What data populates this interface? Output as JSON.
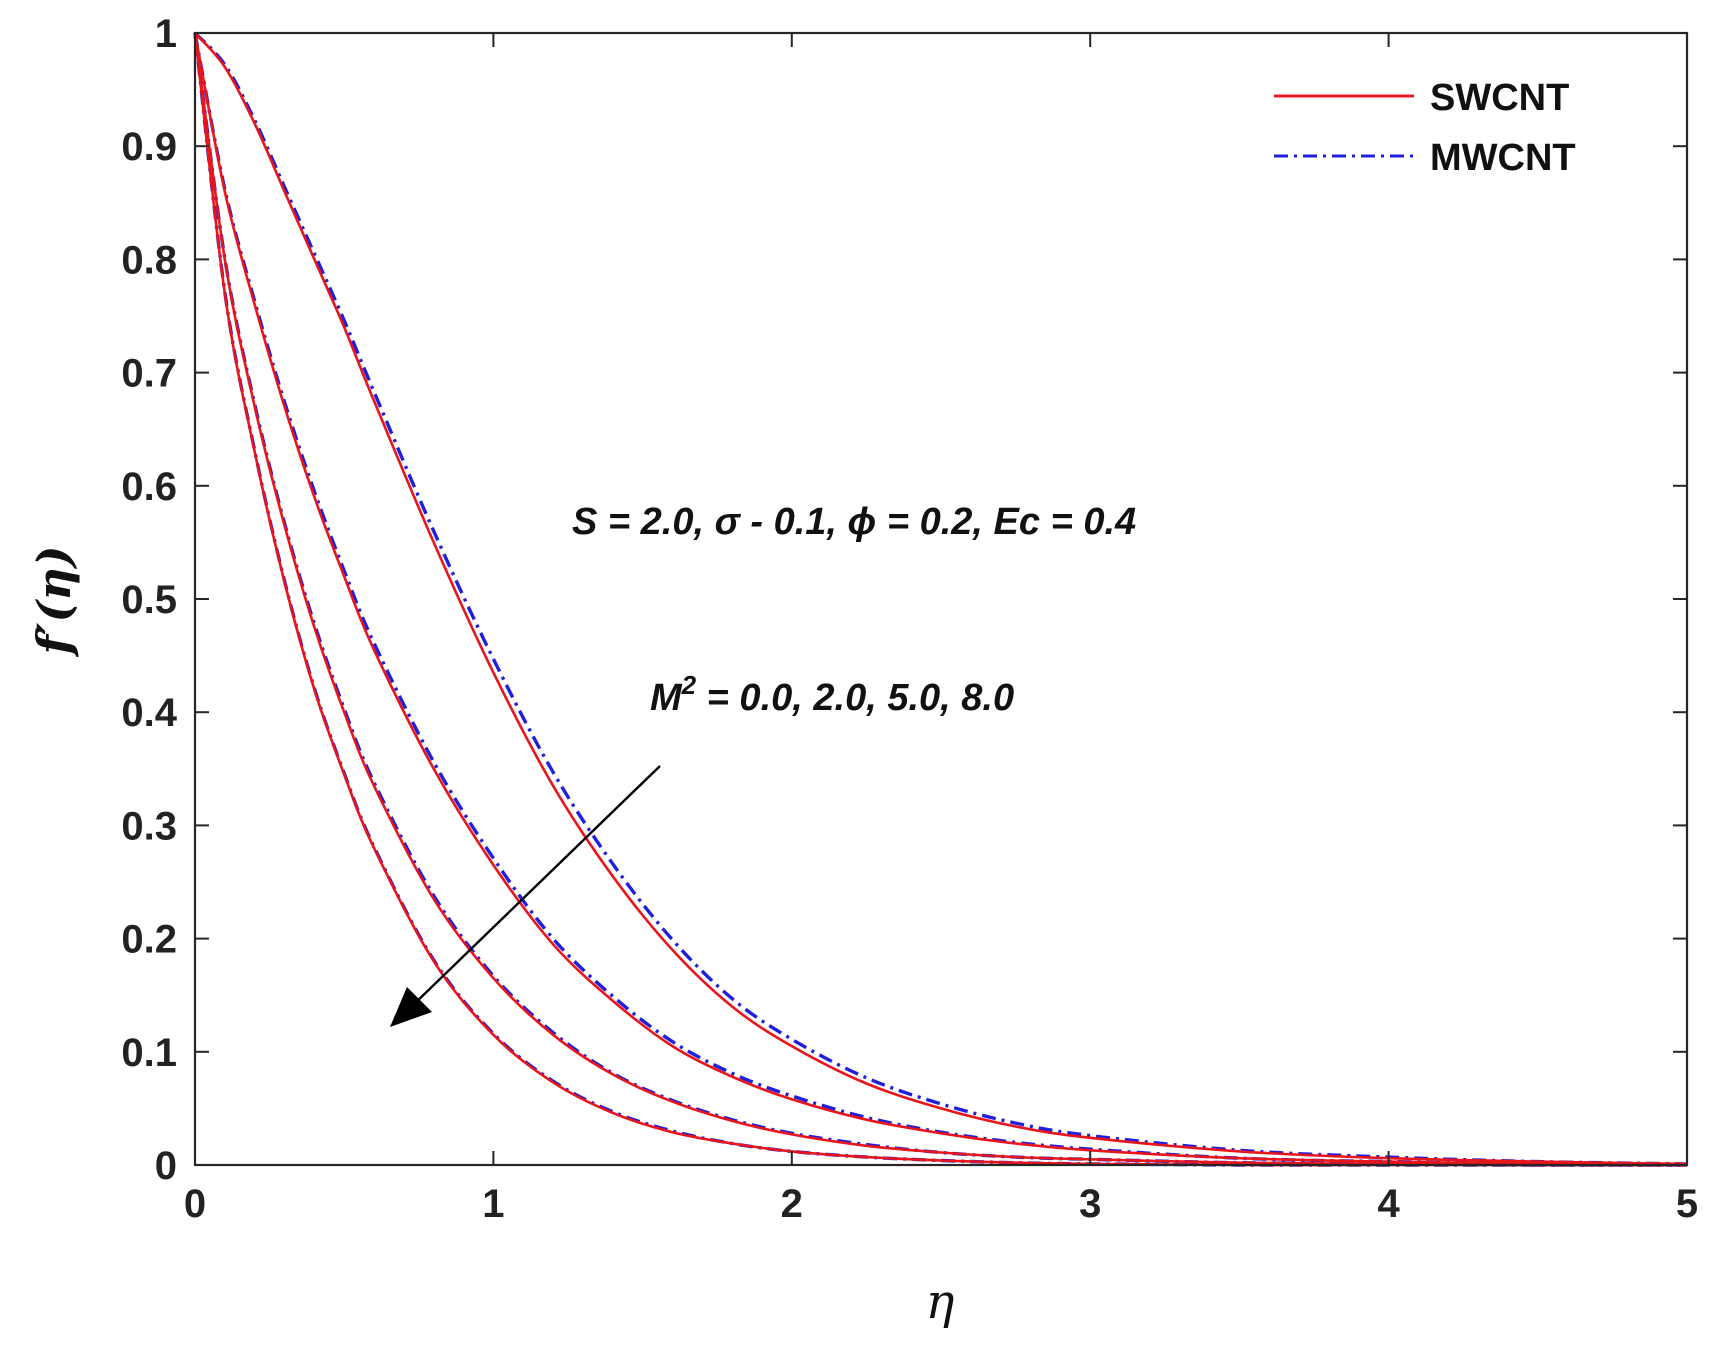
{
  "chart_data": {
    "type": "line",
    "xlabel": "η",
    "ylabel": "f′(η)",
    "xlim": [
      0,
      5
    ],
    "ylim": [
      0,
      1
    ],
    "xticks": [
      "0",
      "1",
      "2",
      "3",
      "4",
      "5"
    ],
    "yticks": [
      "0",
      "0.1",
      "0.2",
      "0.3",
      "0.4",
      "0.5",
      "0.6",
      "0.7",
      "0.8",
      "0.9",
      "1"
    ],
    "grid": false,
    "legend_position": "top-right",
    "legend": [
      {
        "label": "SWCNT",
        "color": "#e8151b",
        "style": "solid"
      },
      {
        "label": "MWCNT",
        "color": "#1f1fdc",
        "style": "dash-dot"
      }
    ],
    "annotations": {
      "params": "S = 2.0, σ - 0.1, ϕ = 0.2, Ec = 0.4",
      "m_base": "M",
      "m_sup": "2",
      "m_values": " = 0.0, 2.0, 5.0, 8.0",
      "arrow": "increasing M² decreases f′(η)"
    },
    "x": [
      0,
      0.1,
      0.2,
      0.3,
      0.4,
      0.5,
      0.6,
      0.8,
      1.0,
      1.2,
      1.4,
      1.6,
      1.8,
      2.0,
      2.25,
      2.5,
      2.75,
      3.0,
      3.5,
      4.0,
      4.5,
      5.0
    ],
    "series": [
      {
        "name": "SWCNT",
        "group": "M2=0.0",
        "values": [
          1,
          0.97,
          0.92,
          0.86,
          0.8,
          0.74,
          0.675,
          0.55,
          0.435,
          0.335,
          0.255,
          0.19,
          0.14,
          0.105,
          0.072,
          0.05,
          0.034,
          0.024,
          0.012,
          0.006,
          0.003,
          0.001
        ]
      },
      {
        "name": "MWCNT",
        "group": "M2=0.0",
        "values": [
          1,
          0.972,
          0.923,
          0.864,
          0.805,
          0.746,
          0.683,
          0.56,
          0.447,
          0.347,
          0.266,
          0.199,
          0.147,
          0.111,
          0.077,
          0.054,
          0.037,
          0.026,
          0.013,
          0.007,
          0.003,
          0.001
        ]
      },
      {
        "name": "SWCNT",
        "group": "M2=2.0",
        "values": [
          1,
          0.86,
          0.76,
          0.67,
          0.59,
          0.52,
          0.455,
          0.35,
          0.265,
          0.195,
          0.145,
          0.105,
          0.078,
          0.058,
          0.04,
          0.028,
          0.019,
          0.013,
          0.006,
          0.003,
          0.001,
          0.0
        ]
      },
      {
        "name": "MWCNT",
        "group": "M2=2.0",
        "values": [
          1,
          0.862,
          0.763,
          0.674,
          0.595,
          0.525,
          0.461,
          0.356,
          0.271,
          0.2,
          0.149,
          0.109,
          0.081,
          0.061,
          0.042,
          0.029,
          0.02,
          0.014,
          0.006,
          0.003,
          0.001,
          0.0
        ]
      },
      {
        "name": "SWCNT",
        "group": "M2=5.0",
        "values": [
          1,
          0.8,
          0.67,
          0.565,
          0.475,
          0.4,
          0.335,
          0.235,
          0.165,
          0.115,
          0.08,
          0.056,
          0.039,
          0.027,
          0.017,
          0.011,
          0.007,
          0.005,
          0.002,
          0.001,
          0.0,
          0.0
        ]
      },
      {
        "name": "MWCNT",
        "group": "M2=5.0",
        "values": [
          1,
          0.801,
          0.672,
          0.567,
          0.478,
          0.403,
          0.338,
          0.238,
          0.167,
          0.117,
          0.081,
          0.057,
          0.04,
          0.028,
          0.018,
          0.011,
          0.007,
          0.005,
          0.002,
          0.001,
          0.0,
          0.0
        ]
      },
      {
        "name": "SWCNT",
        "group": "M2=8.0",
        "values": [
          1,
          0.77,
          0.63,
          0.515,
          0.42,
          0.345,
          0.28,
          0.18,
          0.115,
          0.073,
          0.046,
          0.029,
          0.019,
          0.012,
          0.007,
          0.004,
          0.002,
          0.001,
          0.0,
          0.0,
          0.0,
          0.0
        ]
      },
      {
        "name": "MWCNT",
        "group": "M2=8.0",
        "values": [
          1,
          0.771,
          0.631,
          0.516,
          0.421,
          0.346,
          0.281,
          0.181,
          0.116,
          0.074,
          0.047,
          0.03,
          0.019,
          0.012,
          0.007,
          0.004,
          0.002,
          0.001,
          0.0,
          0.0,
          0.0,
          0.0
        ]
      }
    ]
  }
}
